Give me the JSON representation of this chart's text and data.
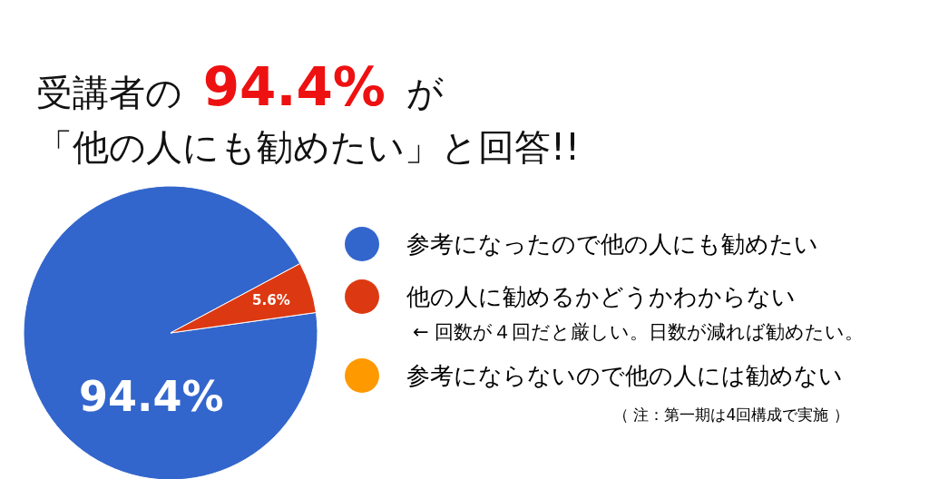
{
  "chart_data": {
    "type": "pie",
    "title": "受講者の 94.4% が",
    "subtitle": "「他の人にも勧めたい」と回答!!",
    "categories": [
      "参考になったので他の人にも勧めたい",
      "他の人に勧めるかどうかわからない",
      "参考にならないので他の人には勧めない"
    ],
    "values": [
      94.4,
      5.6,
      0
    ],
    "colors": [
      "#3366cc",
      "#dc3912",
      "#ff9900"
    ],
    "value_labels": [
      "94.4%",
      "5.6%",
      null
    ],
    "legend": "right",
    "annotations": [
      "← 回数が４回だと厳しい。日数が減れば勧めたい。",
      "（ 注：第一期は4回構成で実施 ）"
    ]
  }
}
